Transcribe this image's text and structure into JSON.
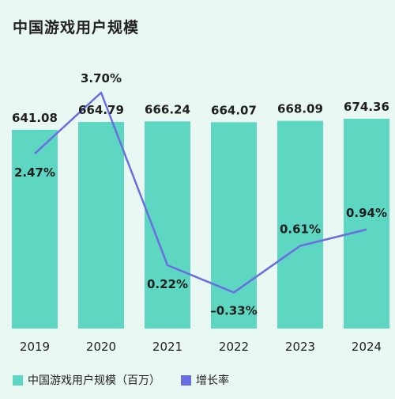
{
  "title": "中国游戏用户规模",
  "colors": {
    "bar": "#5dd6c2",
    "line": "#6b6ee0",
    "background": "#e9f8f2"
  },
  "legend": [
    {
      "label": "中国游戏用户规模（百万）",
      "color": "#5dd6c2",
      "shape": "square"
    },
    {
      "label": "增长率",
      "color": "#6b6ee0",
      "shape": "square"
    }
  ],
  "chart_data": {
    "type": "bar",
    "categories": [
      "2019",
      "2020",
      "2021",
      "2022",
      "2023",
      "2024"
    ],
    "series": [
      {
        "name": "中国游戏用户规模（百万）",
        "type": "bar",
        "values": [
          641.08,
          664.79,
          666.24,
          664.07,
          668.09,
          674.36
        ],
        "labels": [
          "641.08",
          "664.79",
          "666.24",
          "664.07",
          "668.09",
          "674.36"
        ]
      },
      {
        "name": "增长率",
        "type": "line",
        "values": [
          2.47,
          3.7,
          0.22,
          -0.33,
          0.61,
          0.94
        ],
        "labels": [
          "2.47%",
          "3.70%",
          "0.22%",
          "–0.33%",
          "0.61%",
          "0.94%"
        ]
      }
    ],
    "legend_position": "bottom-left",
    "grid": false
  }
}
